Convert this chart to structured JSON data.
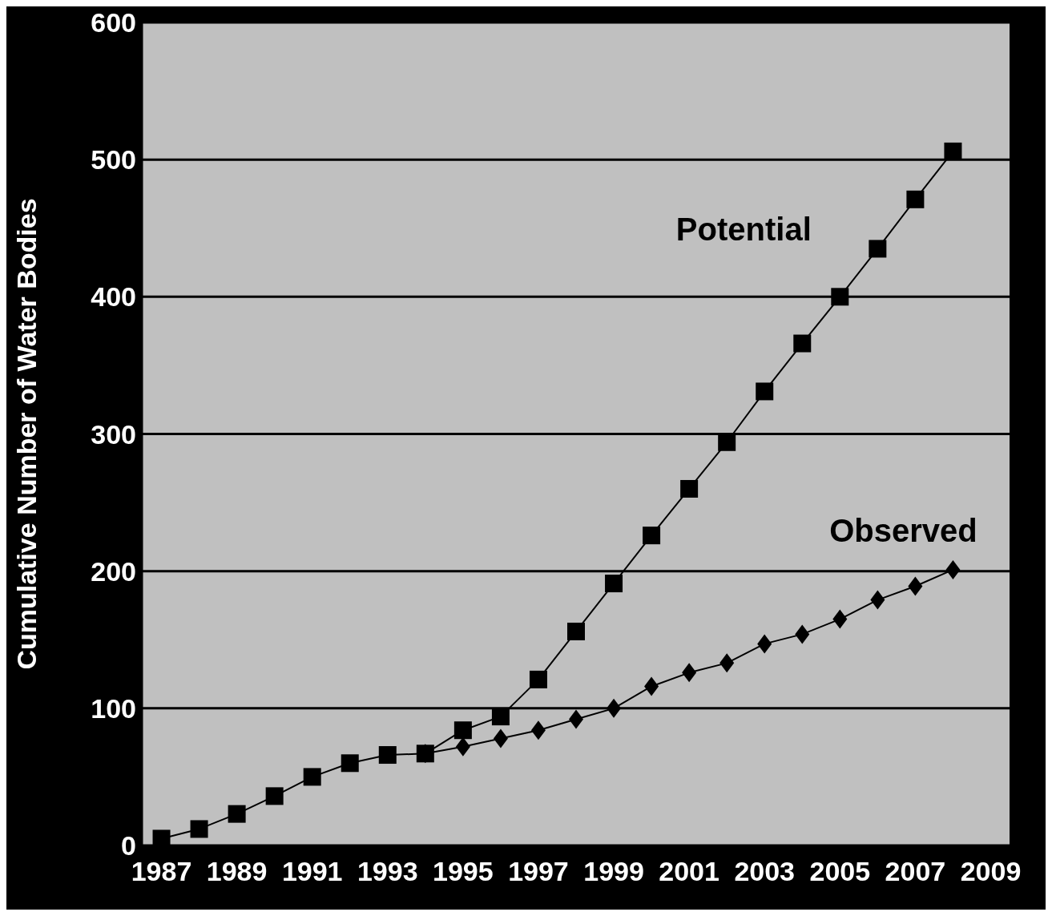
{
  "chart_data": {
    "type": "line",
    "ylabel": "Cumulative Number of Water Bodies",
    "x": [
      1987,
      1988,
      1989,
      1990,
      1991,
      1992,
      1993,
      1994,
      1995,
      1996,
      1997,
      1998,
      1999,
      2000,
      2001,
      2002,
      2003,
      2004,
      2005,
      2006,
      2007,
      2008
    ],
    "series": [
      {
        "name": "Potential",
        "color": "#000000",
        "marker": "square",
        "values": [
          5,
          12,
          23,
          36,
          50,
          60,
          66,
          67,
          84,
          94,
          121,
          156,
          191,
          226,
          260,
          294,
          331,
          366,
          400,
          435,
          471,
          506
        ]
      },
      {
        "name": "Observed",
        "color": "#000000",
        "marker": "diamond",
        "values": [
          null,
          null,
          null,
          null,
          null,
          null,
          null,
          67,
          72,
          78,
          84,
          92,
          100,
          116,
          126,
          133,
          147,
          154,
          165,
          179,
          189,
          201
        ]
      }
    ],
    "xlim": [
      1986.5,
      2009.5
    ],
    "xticks": [
      1987,
      1989,
      1991,
      1993,
      1995,
      1997,
      1999,
      2001,
      2003,
      2005,
      2007,
      2009
    ],
    "ylim": [
      0,
      600
    ],
    "yticks": [
      0,
      100,
      200,
      300,
      400,
      500,
      600
    ],
    "grid": "y",
    "legend": false,
    "line_style": "solid"
  }
}
